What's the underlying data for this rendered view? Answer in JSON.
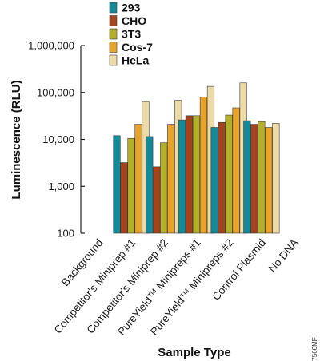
{
  "chart_data": {
    "type": "bar",
    "ylabel": "Luminescence (RLU)",
    "xlabel": "Sample Type",
    "yscale": "log",
    "ylim": [
      100,
      1000000
    ],
    "yticks": [
      100,
      1000,
      10000,
      100000,
      1000000
    ],
    "ytick_labels": [
      "100",
      "1,000",
      "10,000",
      "100,000",
      "1,000,000"
    ],
    "grid": false,
    "legend_position": "top-left",
    "categories": [
      "Background",
      "Competitor's Miniprep #1",
      "Competitor's Miniprep #2",
      "PureYield™ Minipreps #1",
      "PureYield™ Minipreps #2",
      "Control Plasmid",
      "No DNA"
    ],
    "series": [
      {
        "name": "293",
        "color": "#138a9a",
        "values": [
          null,
          12000,
          11500,
          26000,
          18000,
          25000,
          null
        ]
      },
      {
        "name": "CHO",
        "color": "#a3441e",
        "values": [
          null,
          3200,
          2600,
          32000,
          23000,
          21000,
          null
        ]
      },
      {
        "name": "3T3",
        "color": "#b5b02b",
        "values": [
          null,
          10500,
          8500,
          32000,
          33000,
          24000,
          null
        ]
      },
      {
        "name": "Cos-7",
        "color": "#e8a32a",
        "values": [
          null,
          21000,
          21000,
          80000,
          47000,
          18000,
          null
        ]
      },
      {
        "name": "HeLa",
        "color": "#ecdba6",
        "values": [
          null,
          64000,
          68000,
          135000,
          160000,
          22000,
          null
        ]
      }
    ]
  },
  "figure_code": "7566MF"
}
